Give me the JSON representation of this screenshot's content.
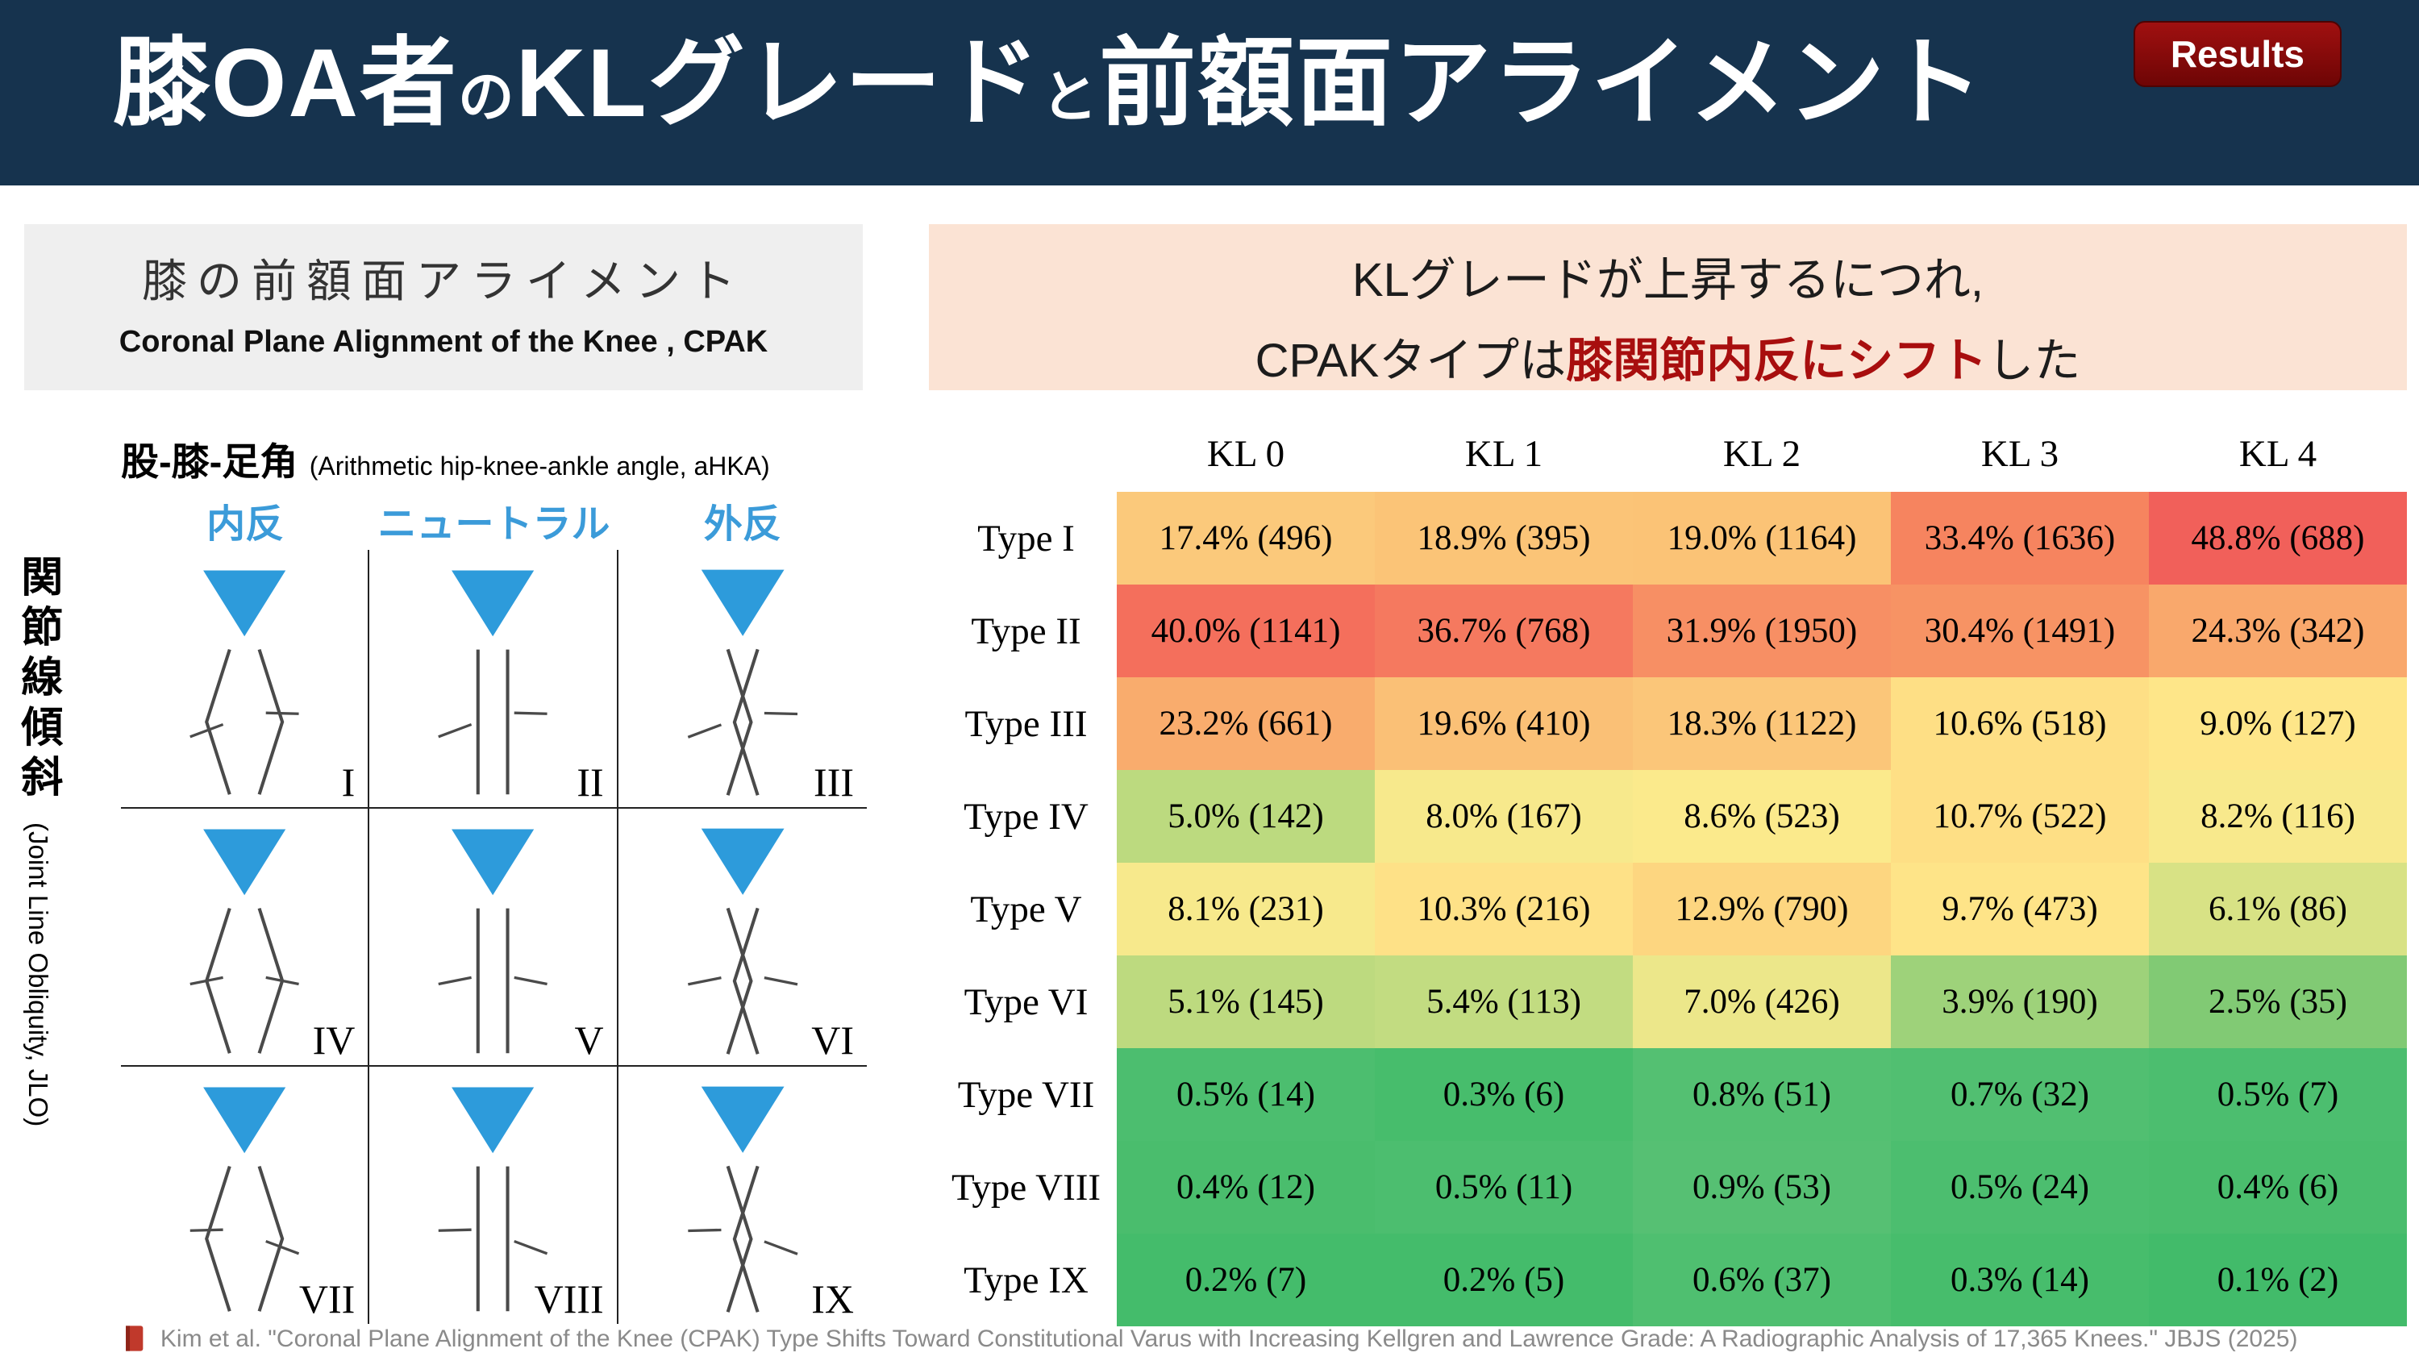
{
  "header": {
    "title_parts": [
      {
        "text": "膝OA者",
        "small": false
      },
      {
        "text": "の",
        "small": true
      },
      {
        "text": "KLグレード",
        "small": false
      },
      {
        "text": "と",
        "small": true
      },
      {
        "text": "前額面アライメント",
        "small": false
      }
    ],
    "results_badge": "Results",
    "bar_color": "#16334E",
    "badge_color": "#8A0A0A"
  },
  "left_panel": {
    "box_title": "膝の前額面アライメント",
    "box_subtitle": "Coronal Plane Alignment of the Knee , CPAK",
    "axis_top_bold": "股-膝-足角",
    "axis_top_note": "(Arithmetic hip-knee-ankle angle, aHKA)",
    "col_labels": [
      "内反",
      "ニュートラル",
      "外反"
    ],
    "side_label_bold": "関節線傾斜",
    "side_label_note": "(Joint Line Obliquity, JLO)",
    "accent_blue": "#2D9BDB",
    "grid_cells": [
      {
        "numeral": "I",
        "alignment": "varus",
        "jlo": "apex-distal"
      },
      {
        "numeral": "II",
        "alignment": "neutral",
        "jlo": "apex-distal"
      },
      {
        "numeral": "III",
        "alignment": "valgus",
        "jlo": "apex-distal"
      },
      {
        "numeral": "IV",
        "alignment": "varus",
        "jlo": "neutral"
      },
      {
        "numeral": "V",
        "alignment": "neutral",
        "jlo": "neutral"
      },
      {
        "numeral": "VI",
        "alignment": "valgus",
        "jlo": "neutral"
      },
      {
        "numeral": "VII",
        "alignment": "varus",
        "jlo": "apex-proximal"
      },
      {
        "numeral": "VIII",
        "alignment": "neutral",
        "jlo": "apex-proximal"
      },
      {
        "numeral": "IX",
        "alignment": "valgus",
        "jlo": "apex-proximal"
      }
    ]
  },
  "right_panel": {
    "headline_line1": "KLグレードが上昇するにつれ,",
    "headline_line2_prefix": "CPAKタイプは",
    "headline_line2_highlight": "膝関節内反にシフト",
    "headline_line2_suffix": "した",
    "highlight_color": "#A80E0E",
    "box_color": "#FBE3D4"
  },
  "chart_data": {
    "type": "heatmap",
    "columns": [
      "KL 0",
      "KL 1",
      "KL 2",
      "KL 3",
      "KL 4"
    ],
    "value_format": "percent (count)",
    "rows": [
      {
        "label": "Type I",
        "cells": [
          {
            "pct": 17.4,
            "n": 496,
            "color": "#FBC97B"
          },
          {
            "pct": 18.9,
            "n": 395,
            "color": "#FBC477"
          },
          {
            "pct": 19.0,
            "n": 1164,
            "color": "#FBC376"
          },
          {
            "pct": 33.4,
            "n": 1636,
            "color": "#F6845F"
          },
          {
            "pct": 48.8,
            "n": 688,
            "color": "#F1605A"
          }
        ]
      },
      {
        "label": "Type II",
        "cells": [
          {
            "pct": 40.0,
            "n": 1141,
            "color": "#F46F5C"
          },
          {
            "pct": 36.7,
            "n": 768,
            "color": "#F5795F"
          },
          {
            "pct": 31.9,
            "n": 1950,
            "color": "#F78F64"
          },
          {
            "pct": 30.4,
            "n": 1491,
            "color": "#F79364"
          },
          {
            "pct": 24.3,
            "n": 342,
            "color": "#F9A86C"
          }
        ]
      },
      {
        "label": "Type III",
        "cells": [
          {
            "pct": 23.2,
            "n": 661,
            "color": "#F9AC6D"
          },
          {
            "pct": 19.6,
            "n": 410,
            "color": "#FAC076"
          },
          {
            "pct": 18.3,
            "n": 1122,
            "color": "#FBC679"
          },
          {
            "pct": 10.6,
            "n": 518,
            "color": "#FEDF85"
          },
          {
            "pct": 9.0,
            "n": 127,
            "color": "#FEE689"
          }
        ]
      },
      {
        "label": "Type IV",
        "cells": [
          {
            "pct": 5.0,
            "n": 142,
            "color": "#BCDA7F"
          },
          {
            "pct": 8.0,
            "n": 167,
            "color": "#F7E98C"
          },
          {
            "pct": 8.6,
            "n": 523,
            "color": "#FBEA8C"
          },
          {
            "pct": 10.7,
            "n": 522,
            "color": "#FEDF85"
          },
          {
            "pct": 8.2,
            "n": 116,
            "color": "#F8E98C"
          }
        ]
      },
      {
        "label": "Type V",
        "cells": [
          {
            "pct": 8.1,
            "n": 231,
            "color": "#F7E98C"
          },
          {
            "pct": 10.3,
            "n": 216,
            "color": "#FEE187"
          },
          {
            "pct": 12.9,
            "n": 790,
            "color": "#FDD680"
          },
          {
            "pct": 9.7,
            "n": 473,
            "color": "#FEE488"
          },
          {
            "pct": 6.1,
            "n": 86,
            "color": "#D8E285"
          }
        ]
      },
      {
        "label": "Type VI",
        "cells": [
          {
            "pct": 5.1,
            "n": 145,
            "color": "#BDDA7F"
          },
          {
            "pct": 5.4,
            "n": 113,
            "color": "#C2DC81"
          },
          {
            "pct": 7.0,
            "n": 426,
            "color": "#ECE78A"
          },
          {
            "pct": 3.9,
            "n": 190,
            "color": "#9ED27A"
          },
          {
            "pct": 2.5,
            "n": 35,
            "color": "#81CA74"
          }
        ]
      },
      {
        "label": "Type VII",
        "cells": [
          {
            "pct": 0.5,
            "n": 14,
            "color": "#4CBE6F"
          },
          {
            "pct": 0.3,
            "n": 6,
            "color": "#47BD6C"
          },
          {
            "pct": 0.8,
            "n": 51,
            "color": "#54C072"
          },
          {
            "pct": 0.7,
            "n": 32,
            "color": "#51BF71"
          },
          {
            "pct": 0.5,
            "n": 7,
            "color": "#4CBE6F"
          }
        ]
      },
      {
        "label": "Type VIII",
        "cells": [
          {
            "pct": 0.4,
            "n": 12,
            "color": "#4ABD6D"
          },
          {
            "pct": 0.5,
            "n": 11,
            "color": "#4CBE6F"
          },
          {
            "pct": 0.9,
            "n": 53,
            "color": "#56C073"
          },
          {
            "pct": 0.5,
            "n": 24,
            "color": "#4CBE6F"
          },
          {
            "pct": 0.4,
            "n": 6,
            "color": "#4ABD6D"
          }
        ]
      },
      {
        "label": "Type IX",
        "cells": [
          {
            "pct": 0.2,
            "n": 7,
            "color": "#44BC6B"
          },
          {
            "pct": 0.2,
            "n": 5,
            "color": "#44BC6B"
          },
          {
            "pct": 0.6,
            "n": 37,
            "color": "#4FBF70"
          },
          {
            "pct": 0.3,
            "n": 14,
            "color": "#47BD6C"
          },
          {
            "pct": 0.1,
            "n": 2,
            "color": "#42BB6A"
          }
        ]
      }
    ]
  },
  "footer": {
    "citation": "Kim et al. \"Coronal Plane Alignment of the Knee (CPAK) Type Shifts Toward Constitutional Varus with Increasing Kellgren and Lawrence Grade: A Radiographic Analysis of 17,365 Knees.\" JBJS (2025)"
  }
}
